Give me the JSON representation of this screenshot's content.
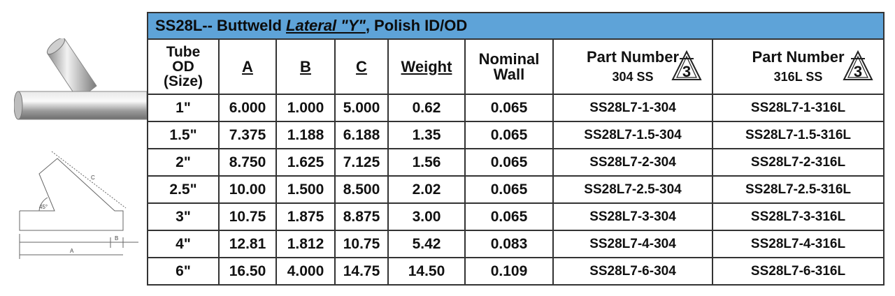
{
  "table": {
    "title": {
      "prefix": "SS28L-- Buttweld ",
      "lateral": "Lateral \"Y\"",
      "suffix": ", Polish ID/OD"
    },
    "headers": {
      "tube_od": [
        "Tube",
        "OD",
        "(Size)"
      ],
      "a": "A",
      "b": "B",
      "c": "C",
      "weight": "Weight",
      "nominal_wall": [
        "Nominal",
        "Wall"
      ],
      "pn304": [
        "Part Number",
        "304 SS"
      ],
      "pn316": [
        "Part Number",
        "316L SS"
      ]
    },
    "rows": [
      [
        "1\"",
        "6.000",
        "1.000",
        "5.000",
        "0.62",
        "0.065",
        "SS28L7-1-304",
        "SS28L7-1-316L"
      ],
      [
        "1.5\"",
        "7.375",
        "1.188",
        "6.188",
        "1.35",
        "0.065",
        "SS28L7-1.5-304",
        "SS28L7-1.5-316L"
      ],
      [
        "2\"",
        "8.750",
        "1.625",
        "7.125",
        "1.56",
        "0.065",
        "SS28L7-2-304",
        "SS28L7-2-316L"
      ],
      [
        "2.5\"",
        "10.00",
        "1.500",
        "8.500",
        "2.02",
        "0.065",
        "SS28L7-2.5-304",
        "SS28L7-2.5-316L"
      ],
      [
        "3\"",
        "10.75",
        "1.875",
        "8.875",
        "3.00",
        "0.065",
        "SS28L7-3-304",
        "SS28L7-3-316L"
      ],
      [
        "4\"",
        "12.81",
        "1.812",
        "10.75",
        "5.42",
        "0.083",
        "SS28L7-4-304",
        "SS28L7-4-316L"
      ],
      [
        "6\"",
        "16.50",
        "4.000",
        "14.75",
        "14.50",
        "0.109",
        "SS28L7-6-304",
        "SS28L7-6-316L"
      ]
    ]
  },
  "drawing": {
    "angle_label": "45°",
    "dim_a": "A",
    "dim_b": "B",
    "dim_c": "C"
  },
  "logo_text": "3",
  "colors": {
    "title_bg": "#5ea3d8",
    "border": "#333333"
  }
}
